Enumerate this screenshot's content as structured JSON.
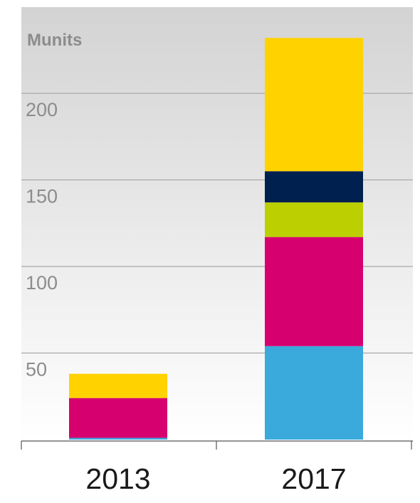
{
  "chart_data": {
    "type": "bar",
    "stacked": true,
    "unit_label": "Munits",
    "categories": [
      "2013",
      "2017"
    ],
    "y_ticks": [
      "50",
      "100",
      "150",
      "200"
    ],
    "y_tick_values": [
      50,
      100,
      150,
      200
    ],
    "ylim": [
      0,
      250
    ],
    "grid": true,
    "legend": "none",
    "background": "light gray gradient (top) to white (bottom)",
    "series": [
      {
        "color": "#3aa9dc",
        "values": [
          1,
          54
        ]
      },
      {
        "color": "#d6006f",
        "values": [
          23,
          63
        ]
      },
      {
        "color": "#bccf00",
        "values": [
          0,
          20
        ]
      },
      {
        "color": "#002050",
        "values": [
          0,
          18
        ]
      },
      {
        "color": "#ffd200",
        "values": [
          14,
          77
        ]
      }
    ]
  }
}
